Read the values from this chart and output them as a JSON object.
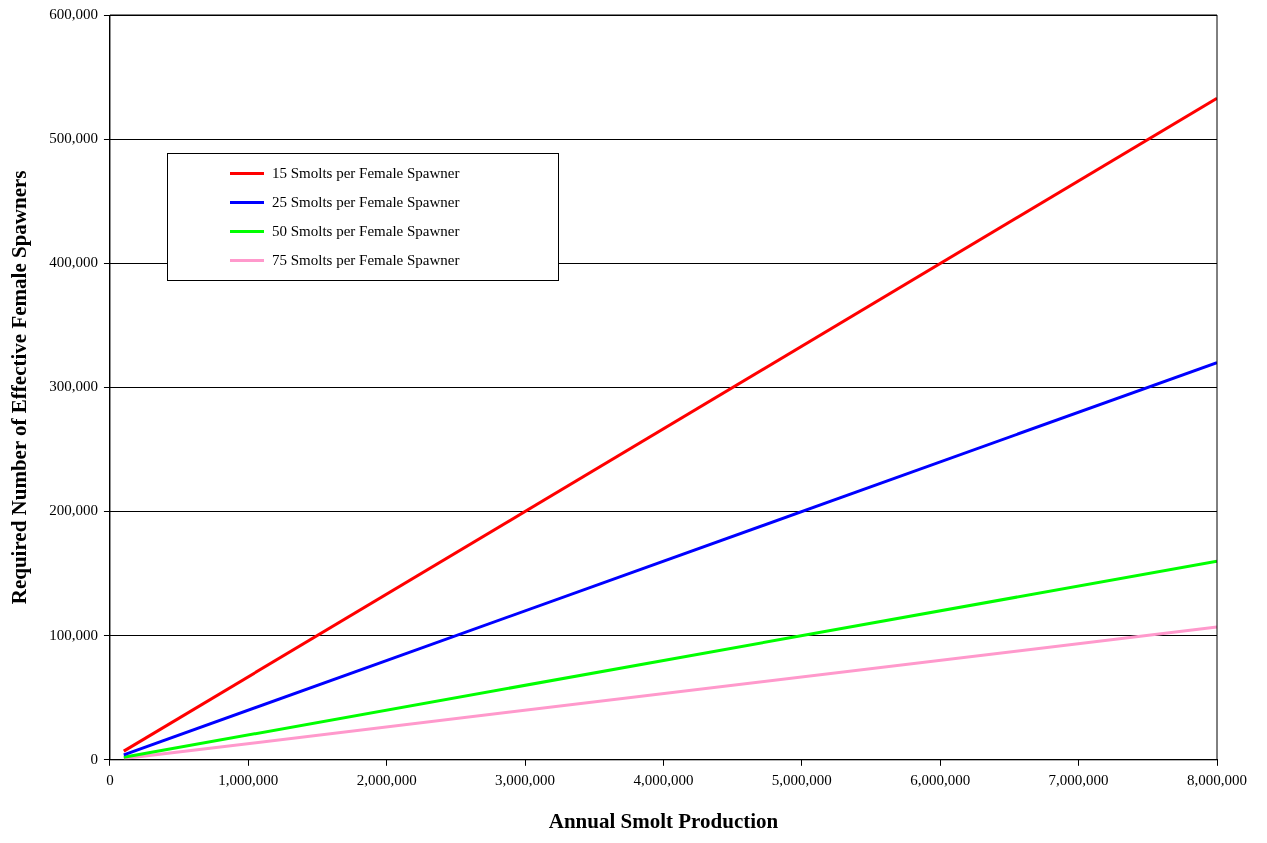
{
  "chart_data": {
    "type": "line",
    "xlabel": "Annual Smolt Production",
    "ylabel": "Required Number of Effective Female Spawners",
    "x": [
      100000,
      8000000
    ],
    "series": [
      {
        "name": "15 Smolts per Female Spawner",
        "color": "#ff0000",
        "values": [
          7000,
          533000
        ]
      },
      {
        "name": "25 Smolts per Female Spawner",
        "color": "#0000ff",
        "values": [
          4000,
          320000
        ]
      },
      {
        "name": "50 Smolts per Female Spawner",
        "color": "#00ff00",
        "values": [
          2000,
          160000
        ]
      },
      {
        "name": "75 Smolts per Female Spawner",
        "color": "#ff99cc",
        "values": [
          1000,
          107000
        ]
      }
    ],
    "xlim": [
      0,
      8000000
    ],
    "xticks": [
      0,
      {
        "value": 1000000,
        "label": "1,000,000"
      },
      {
        "value": 2000000,
        "label": "2,000,000"
      },
      {
        "value": 3000000,
        "label": "3,000,000"
      },
      {
        "value": 4000000,
        "label": "4,000,000"
      },
      {
        "value": 5000000,
        "label": "5,000,000"
      },
      {
        "value": 6000000,
        "label": "6,000,000"
      },
      {
        "value": 7000000,
        "label": "7,000,000"
      },
      {
        "value": 8000000,
        "label": "8,000,000"
      }
    ],
    "ylim": [
      0,
      600000
    ],
    "yticks": [
      0,
      {
        "value": 100000,
        "label": "100,000"
      },
      {
        "value": 200000,
        "label": "200,000"
      },
      {
        "value": 300000,
        "label": "300,000"
      },
      {
        "value": 400000,
        "label": "400,000"
      },
      {
        "value": 500000,
        "label": "500,000"
      },
      {
        "value": 600000,
        "label": "600,000"
      }
    ],
    "grid": "y",
    "legend": "top left",
    "marker": "none",
    "line_style": "solid"
  }
}
